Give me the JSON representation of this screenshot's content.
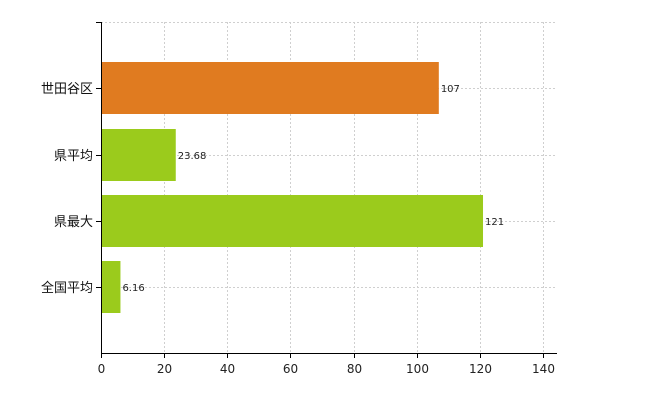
{
  "chart_data": {
    "type": "bar",
    "orientation": "horizontal",
    "categories": [
      "世田谷区",
      "県平均",
      "県最大",
      "全国平均"
    ],
    "values": [
      107,
      23.68,
      121,
      6.16
    ],
    "value_labels": [
      "107",
      "23.68",
      "121",
      "6.16"
    ],
    "bar_colors": [
      "#E07B20",
      "#9BCB1C",
      "#9BCB1C",
      "#9BCB1C"
    ],
    "xlim": [
      0,
      140
    ],
    "xticks": [
      0,
      20,
      40,
      60,
      80,
      100,
      120,
      140
    ],
    "grid": true,
    "legend": "none",
    "title": "",
    "xlabel": "",
    "ylabel": ""
  }
}
